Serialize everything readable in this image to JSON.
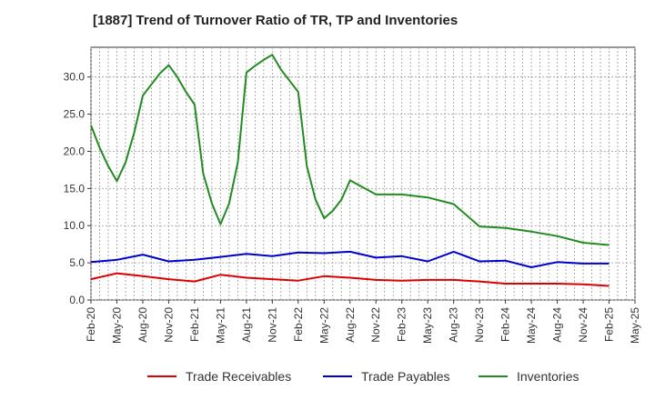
{
  "chart_data": {
    "type": "line",
    "title": "[1887]  Trend of Turnover Ratio of TR, TP and Inventories",
    "xlabel": "",
    "ylabel": "",
    "ylim": [
      0,
      34
    ],
    "yticks": [
      "0.0",
      "5.0",
      "10.0",
      "15.0",
      "20.0",
      "25.0",
      "30.0"
    ],
    "ytick_values": [
      0,
      5,
      10,
      15,
      20,
      25,
      30
    ],
    "xtick_labels": [
      "Feb-20",
      "May-20",
      "Aug-20",
      "Nov-20",
      "Feb-21",
      "May-21",
      "Aug-21",
      "Nov-21",
      "Feb-22",
      "May-22",
      "Aug-22",
      "Nov-22",
      "Feb-23",
      "May-23",
      "Aug-23",
      "Nov-23",
      "Feb-24",
      "May-24",
      "Aug-24",
      "Nov-24",
      "Feb-25",
      "May-25"
    ],
    "grid": true,
    "legend_position": "bottom",
    "series": [
      {
        "name": "Trade Receivables",
        "color": "#dd0000",
        "points": [
          [
            0,
            2.8
          ],
          [
            3,
            3.6
          ],
          [
            6,
            3.2
          ],
          [
            9,
            2.8
          ],
          [
            12,
            2.5
          ],
          [
            15,
            3.4
          ],
          [
            18,
            3.0
          ],
          [
            21,
            2.8
          ],
          [
            24,
            2.6
          ],
          [
            27,
            3.2
          ],
          [
            30,
            3.0
          ],
          [
            33,
            2.7
          ],
          [
            36,
            2.6
          ],
          [
            39,
            2.7
          ],
          [
            42,
            2.7
          ],
          [
            45,
            2.5
          ],
          [
            48,
            2.2
          ],
          [
            51,
            2.2
          ],
          [
            54,
            2.2
          ],
          [
            57,
            2.1
          ],
          [
            60,
            1.9
          ]
        ]
      },
      {
        "name": "Trade Payables",
        "color": "#0000cc",
        "points": [
          [
            0,
            5.1
          ],
          [
            3,
            5.4
          ],
          [
            6,
            6.1
          ],
          [
            9,
            5.2
          ],
          [
            12,
            5.4
          ],
          [
            15,
            5.8
          ],
          [
            18,
            6.2
          ],
          [
            21,
            5.9
          ],
          [
            24,
            6.4
          ],
          [
            27,
            6.3
          ],
          [
            30,
            6.5
          ],
          [
            33,
            5.7
          ],
          [
            36,
            5.9
          ],
          [
            39,
            5.2
          ],
          [
            42,
            6.5
          ],
          [
            45,
            5.2
          ],
          [
            48,
            5.3
          ],
          [
            51,
            4.4
          ],
          [
            54,
            5.1
          ],
          [
            57,
            4.9
          ],
          [
            60,
            4.9
          ]
        ]
      },
      {
        "name": "Inventories",
        "color": "#228b22",
        "points": [
          [
            0,
            23.5
          ],
          [
            1,
            20.5
          ],
          [
            2,
            18.0
          ],
          [
            3,
            16.0
          ],
          [
            4,
            18.5
          ],
          [
            5,
            22.5
          ],
          [
            6,
            27.5
          ],
          [
            7,
            29.0
          ],
          [
            8,
            30.5
          ],
          [
            9,
            31.6
          ],
          [
            10,
            30.0
          ],
          [
            11,
            28.0
          ],
          [
            12,
            26.3
          ],
          [
            13,
            17.0
          ],
          [
            14,
            13.0
          ],
          [
            15,
            10.2
          ],
          [
            16,
            13.0
          ],
          [
            17,
            18.5
          ],
          [
            18,
            30.6
          ],
          [
            19,
            31.5
          ],
          [
            20,
            32.3
          ],
          [
            21,
            33.0
          ],
          [
            22,
            31.0
          ],
          [
            23,
            29.5
          ],
          [
            24,
            28.0
          ],
          [
            25,
            18.0
          ],
          [
            26,
            13.5
          ],
          [
            27,
            11.0
          ],
          [
            28,
            12.0
          ],
          [
            29,
            13.5
          ],
          [
            30,
            16.1
          ],
          [
            33,
            14.2
          ],
          [
            36,
            14.2
          ],
          [
            39,
            13.8
          ],
          [
            42,
            12.9
          ],
          [
            45,
            9.9
          ],
          [
            48,
            9.7
          ],
          [
            51,
            9.2
          ],
          [
            54,
            8.6
          ],
          [
            57,
            7.7
          ],
          [
            60,
            7.4
          ]
        ]
      }
    ]
  }
}
